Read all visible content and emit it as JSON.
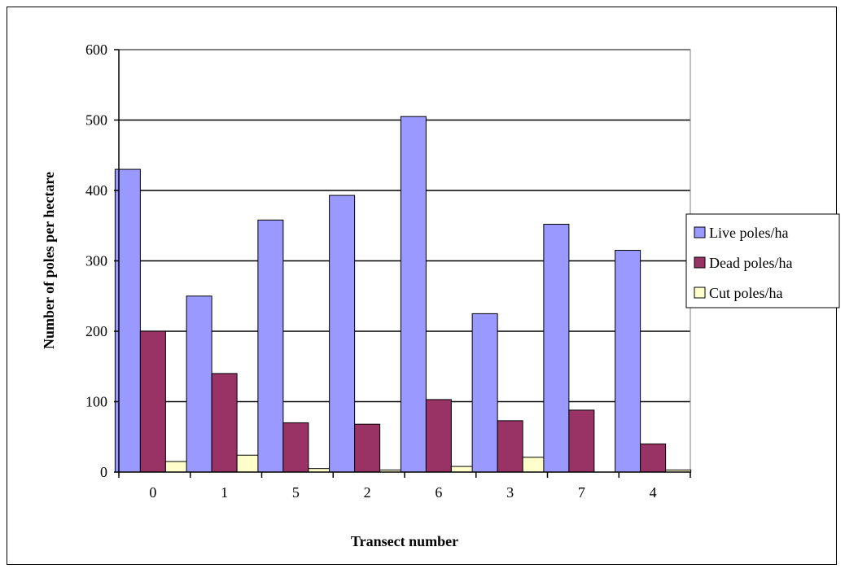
{
  "chart_data": {
    "type": "bar",
    "categories": [
      "0",
      "1",
      "5",
      "2",
      "6",
      "3",
      "7",
      "4"
    ],
    "series": [
      {
        "name": "Live poles/ha",
        "values": [
          430,
          250,
          358,
          393,
          505,
          225,
          352,
          315
        ],
        "color": "#9999ff"
      },
      {
        "name": "Dead poles/ha",
        "values": [
          200,
          140,
          70,
          68,
          103,
          73,
          88,
          40
        ],
        "color": "#993366"
      },
      {
        "name": "Cut poles/ha",
        "values": [
          15,
          24,
          5,
          3,
          8,
          21,
          0,
          3
        ],
        "color": "#ffffcc"
      }
    ],
    "title": "",
    "xlabel": "Transect number",
    "ylabel": "Number of poles per hectare",
    "ylim": [
      0,
      600
    ],
    "yticks": [
      0,
      100,
      200,
      300,
      400,
      500,
      600
    ],
    "grid": true,
    "legend_position": "right"
  }
}
